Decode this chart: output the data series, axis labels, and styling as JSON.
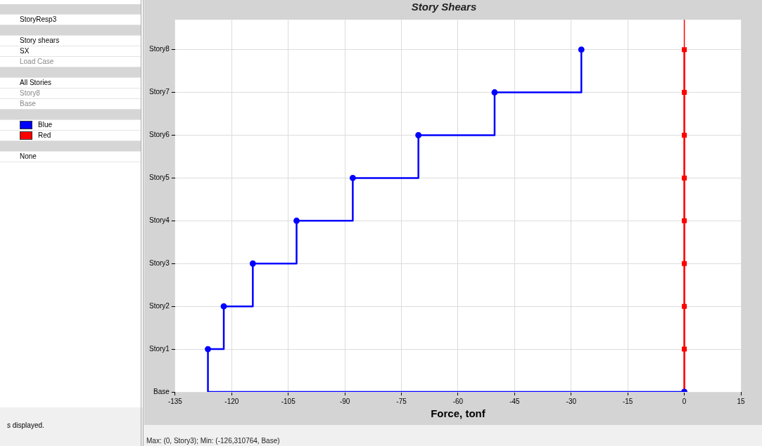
{
  "chart_data": {
    "type": "step",
    "orientation": "horizontal",
    "title": "Story Shears",
    "xlabel": "Force, tonf",
    "xlim": [
      -135,
      15
    ],
    "xticks": [
      -135,
      -120,
      -105,
      -90,
      -75,
      -60,
      -45,
      -30,
      -15,
      0,
      15
    ],
    "categories": [
      "Story8",
      "Story7",
      "Story6",
      "Story5",
      "Story4",
      "Story3",
      "Story2",
      "Story1",
      "Base"
    ],
    "grid": true,
    "legend": "left",
    "ref_lines": [
      {
        "axis": "x",
        "value": 0,
        "color": "#ff0000"
      }
    ],
    "series": [
      {
        "name": "Blue",
        "color": "#0000ff",
        "marker": "circle",
        "values": [
          -27.3,
          -50.3,
          -70.5,
          -87.9,
          -102.8,
          -114.4,
          -122.1,
          -126.3,
          0
        ]
      },
      {
        "name": "Red",
        "color": "#ff0000",
        "marker": "square",
        "values": [
          0,
          0,
          0,
          0,
          0,
          0,
          0,
          0,
          0
        ]
      }
    ],
    "annotations": [
      "StoryResp3",
      "Story shears",
      "SX",
      "Load Case",
      "All Stories",
      "Story8",
      "Base",
      "None",
      "s displayed.",
      "Max: (0, Story3);  Min: (-126,310764, Base)"
    ]
  }
}
